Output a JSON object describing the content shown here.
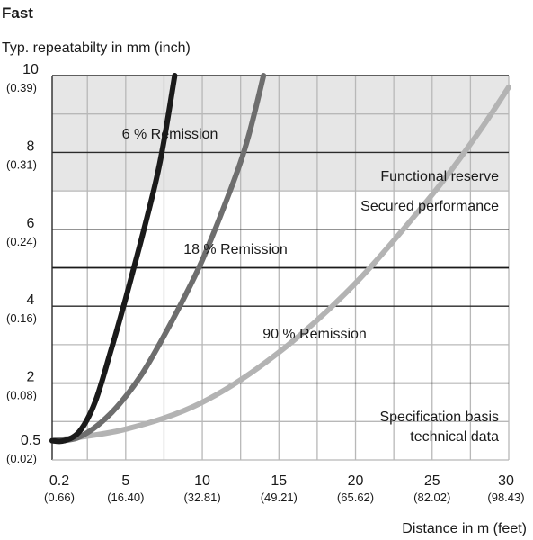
{
  "chart_data": {
    "type": "line",
    "title": "Fast",
    "ylabel": "Typ. repeatabilty in mm (inch)",
    "xlabel": "Distance in m (feet)",
    "xlim": [
      0.2,
      30
    ],
    "ylim": [
      0,
      10
    ],
    "x_ticks": [
      {
        "value": 0.2,
        "label": "0.2",
        "sub": "(0.66)"
      },
      {
        "value": 5,
        "label": "5",
        "sub": "(16.40)"
      },
      {
        "value": 10,
        "label": "10",
        "sub": "(32.81)"
      },
      {
        "value": 15,
        "label": "15",
        "sub": "(49.21)"
      },
      {
        "value": 20,
        "label": "20",
        "sub": "(65.62)"
      },
      {
        "value": 25,
        "label": "25",
        "sub": "(82.02)"
      },
      {
        "value": 30,
        "label": "30",
        "sub": "(98.43)"
      }
    ],
    "y_ticks": [
      {
        "value": 0.5,
        "label": "0.5",
        "sub": "(0.02)"
      },
      {
        "value": 2,
        "label": "2",
        "sub": "(0.08)"
      },
      {
        "value": 4,
        "label": "4",
        "sub": "(0.16)"
      },
      {
        "value": 6,
        "label": "6",
        "sub": "(0.24)"
      },
      {
        "value": 8,
        "label": "8",
        "sub": "(0.31)"
      },
      {
        "value": 10,
        "label": "10",
        "sub": "(0.39)"
      }
    ],
    "x_grid": [
      2.5,
      5,
      7.5,
      10,
      12.5,
      15,
      17.5,
      20,
      22.5,
      25,
      27.5,
      30
    ],
    "y_grid": [
      1,
      2,
      3,
      4,
      5,
      6,
      7,
      8,
      9,
      10
    ],
    "zones": [
      {
        "label": "Functional reserve",
        "from": 7,
        "to": 10,
        "color": "#e6e6e6"
      },
      {
        "label": "Secured performance",
        "from": 0,
        "to": 7
      }
    ],
    "threshold_line": 5,
    "series": [
      {
        "name": "6 % Remission",
        "color": "#1a1a1a",
        "points": [
          [
            0.2,
            0.5
          ],
          [
            1,
            0.5
          ],
          [
            2,
            0.75
          ],
          [
            3,
            1.5
          ],
          [
            4,
            2.8
          ],
          [
            5,
            4.2
          ],
          [
            6,
            5.7
          ],
          [
            7,
            7.3
          ],
          [
            7.5,
            8.3
          ],
          [
            8.2,
            10
          ]
        ]
      },
      {
        "name": "18 % Remission",
        "color": "#6e6e6e",
        "points": [
          [
            0.2,
            0.5
          ],
          [
            2,
            0.6
          ],
          [
            4,
            1.2
          ],
          [
            6,
            2.2
          ],
          [
            8,
            3.6
          ],
          [
            10,
            5.2
          ],
          [
            12,
            7.2
          ],
          [
            13,
            8.4
          ],
          [
            14,
            10
          ]
        ]
      },
      {
        "name": "90 % Remission",
        "color": "#b3b3b3",
        "points": [
          [
            0.2,
            0.5
          ],
          [
            5,
            0.8
          ],
          [
            10,
            1.5
          ],
          [
            15,
            2.8
          ],
          [
            20,
            4.6
          ],
          [
            25,
            6.9
          ],
          [
            28,
            8.5
          ],
          [
            30,
            9.7
          ]
        ]
      }
    ],
    "annotations": [
      {
        "text": "6 % Remission",
        "series": 0
      },
      {
        "text": "18 % Remission",
        "series": 1
      },
      {
        "text": "90 % Remission",
        "series": 2
      },
      {
        "text": "Functional reserve"
      },
      {
        "text": "Secured performance"
      },
      {
        "text": "Specification basis"
      },
      {
        "text": "technical data"
      }
    ],
    "grid": true
  }
}
